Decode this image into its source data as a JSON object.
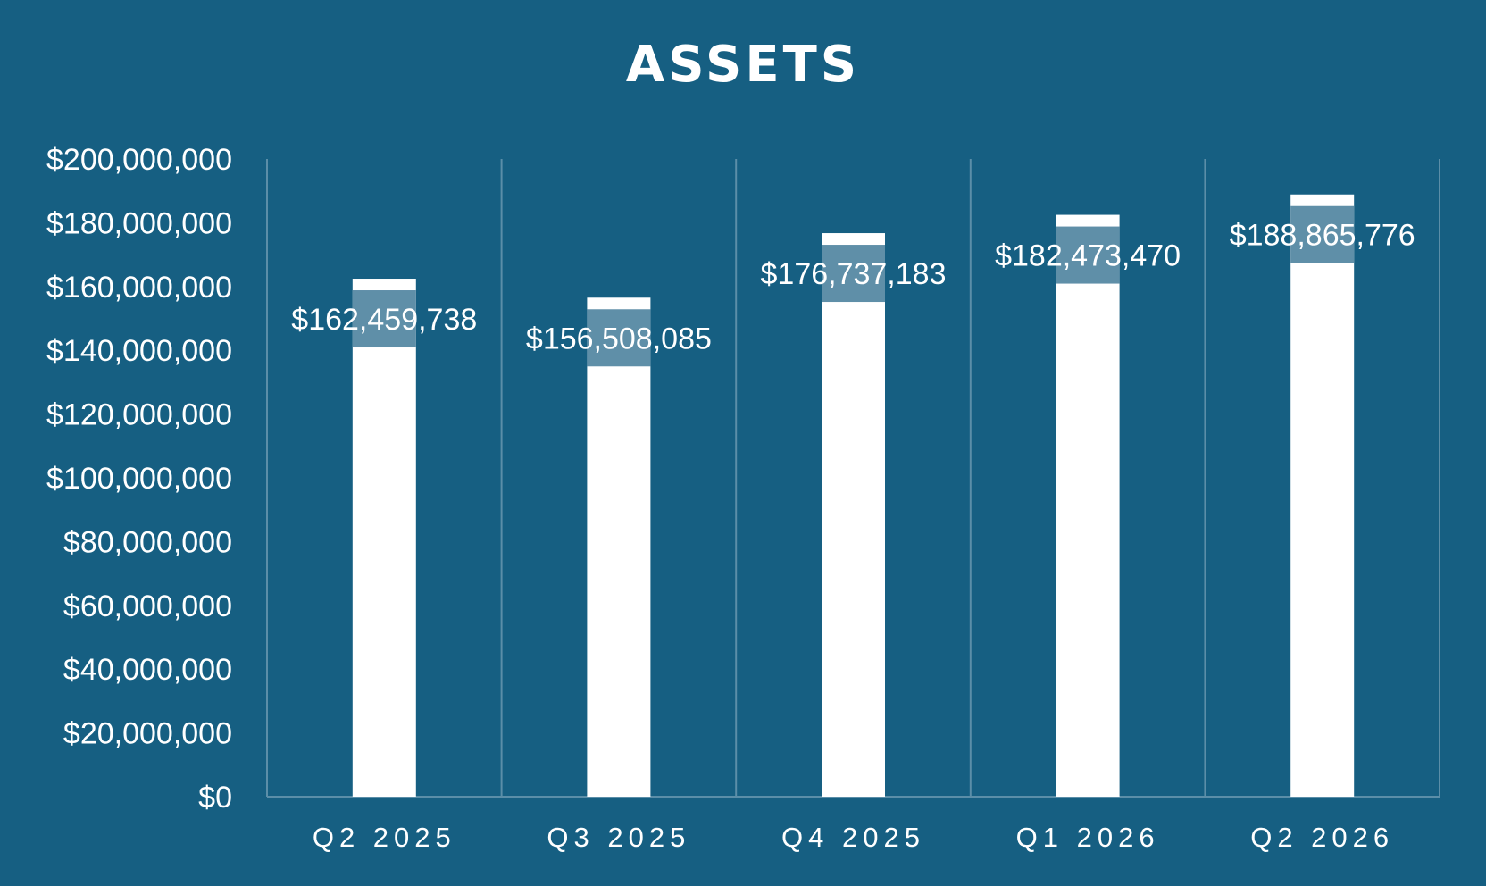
{
  "chart_data": {
    "type": "bar",
    "title": "ASSETS",
    "categories": [
      "Q2 2025",
      "Q3 2025",
      "Q4 2025",
      "Q1 2026",
      "Q2 2026"
    ],
    "values": [
      162459738,
      156508085,
      176737183,
      182473470,
      188865776
    ],
    "data_labels": [
      "$162,459,738",
      "$156,508,085",
      "$176,737,183",
      "$182,473,470",
      "$188,865,776"
    ],
    "y_ticks": [
      "$0",
      "$20,000,000",
      "$40,000,000",
      "$60,000,000",
      "$80,000,000",
      "$100,000,000",
      "$120,000,000",
      "$140,000,000",
      "$160,000,000",
      "$180,000,000",
      "$200,000,000"
    ],
    "ylim": [
      0,
      200000000
    ],
    "xlabel": "",
    "ylabel": "",
    "grid": "vertical separators",
    "legend": "none",
    "colors": {
      "background": "#165f82",
      "bar": "#ffffff",
      "label_box": "#5f8fa8",
      "gridline": "#5b8ea8"
    }
  }
}
